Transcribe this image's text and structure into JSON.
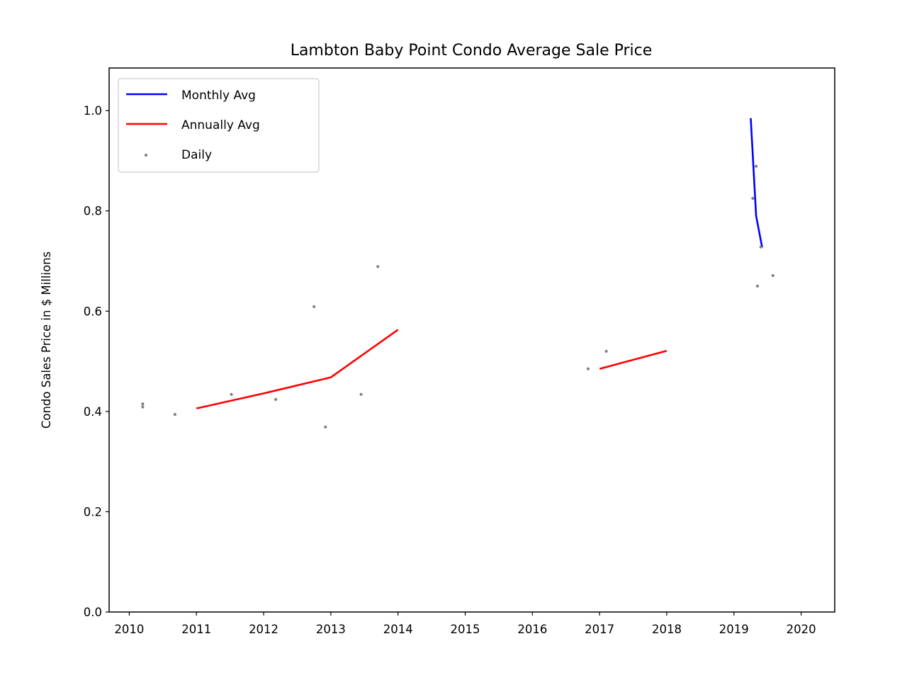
{
  "chart_data": {
    "type": "line",
    "title": "Lambton Baby Point Condo Average Sale Price",
    "xlabel": "",
    "ylabel": "Condo Sales Price in $ Millions",
    "xlim": [
      2009.7,
      2020.5
    ],
    "ylim": [
      0.0,
      1.085
    ],
    "xticks": [
      2010,
      2011,
      2012,
      2013,
      2014,
      2015,
      2016,
      2017,
      2018,
      2019,
      2020
    ],
    "yticks": [
      0.0,
      0.2,
      0.4,
      0.6,
      0.8,
      1.0
    ],
    "ytick_labels": [
      "0.0",
      "0.2",
      "0.4",
      "0.6",
      "0.8",
      "1.0"
    ],
    "grid": false,
    "legend_position": "upper left",
    "legend": [
      {
        "label": "Monthly Avg",
        "kind": "line",
        "color": "#0000ff"
      },
      {
        "label": "Annually Avg",
        "kind": "line",
        "color": "#ff0000"
      },
      {
        "label": "Daily",
        "kind": "dots",
        "color": "#808080"
      }
    ],
    "series": [
      {
        "name": "Monthly Avg",
        "kind": "line",
        "color": "#0000ff",
        "segments": [
          [
            [
              2019.25,
              0.985
            ],
            [
              2019.33,
              0.79
            ],
            [
              2019.42,
              0.727
            ]
          ]
        ]
      },
      {
        "name": "Annually Avg",
        "kind": "line",
        "color": "#ff0000",
        "segments": [
          [
            [
              2011.0,
              0.406
            ],
            [
              2012.0,
              0.436
            ],
            [
              2013.0,
              0.468
            ],
            [
              2014.0,
              0.563
            ]
          ],
          [
            [
              2017.0,
              0.485
            ],
            [
              2018.0,
              0.521
            ]
          ]
        ]
      },
      {
        "name": "Daily",
        "kind": "scatter",
        "color": "#808080",
        "points": [
          [
            2010.2,
            0.415
          ],
          [
            2010.2,
            0.409
          ],
          [
            2010.68,
            0.394
          ],
          [
            2011.52,
            0.434
          ],
          [
            2012.18,
            0.424
          ],
          [
            2012.75,
            0.609
          ],
          [
            2012.92,
            0.369
          ],
          [
            2013.45,
            0.434
          ],
          [
            2013.7,
            0.689
          ],
          [
            2016.83,
            0.485
          ],
          [
            2017.1,
            0.52
          ],
          [
            2019.28,
            0.825
          ],
          [
            2019.33,
            0.889
          ],
          [
            2019.35,
            0.65
          ],
          [
            2019.4,
            0.728
          ],
          [
            2019.58,
            0.671
          ]
        ]
      }
    ]
  }
}
